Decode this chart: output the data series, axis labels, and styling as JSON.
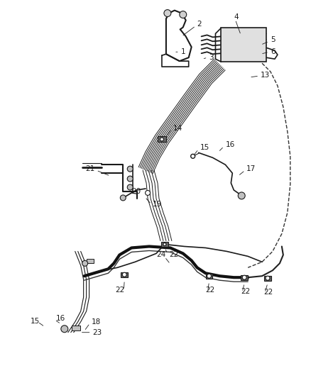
{
  "background_color": "#ffffff",
  "line_color": "#1a1a1a",
  "label_color": "#1a1a1a",
  "fig_width": 4.38,
  "fig_height": 5.33,
  "dpi": 100
}
